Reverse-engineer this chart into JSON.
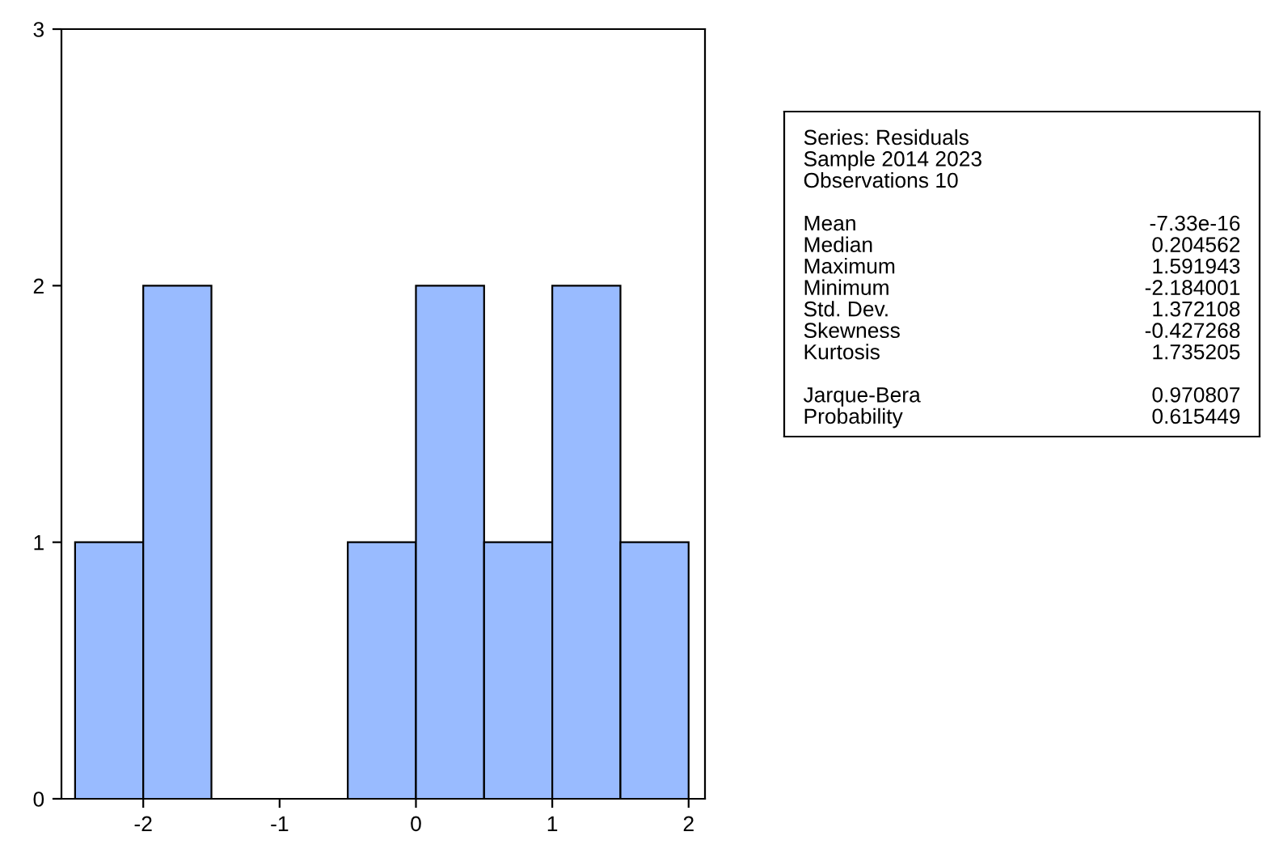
{
  "chart_data": [
    {
      "type": "histogram",
      "bins": [
        -2.5,
        -2,
        -1.5,
        -1,
        -0.5,
        0,
        0.5,
        1,
        1.5,
        2
      ],
      "values": [
        1,
        2,
        0,
        0,
        1,
        2,
        1,
        2,
        1
      ],
      "color": "#99bbff",
      "xlim": [
        -2.6,
        2.12
      ],
      "xticks": [
        -2,
        -1,
        0,
        1,
        2
      ],
      "ylim": [
        0,
        3
      ],
      "yticks": [
        0,
        1,
        2,
        3
      ],
      "grid": false
    },
    {
      "type": "other",
      "annotations": [
        "Series: Residuals",
        "Sample 2014 2023",
        "Observations 10"
      ],
      "categories": [
        "Mean",
        "Median",
        "Maximum",
        "Minimum",
        "Std. Dev.",
        "Skewness",
        "Kurtosis",
        null,
        "Jarque-Bera",
        "Probability"
      ],
      "value_labels": [
        "-7.33e-16",
        "0.204562",
        "1.591943",
        "-2.184001",
        "1.372108",
        "-0.427268",
        "1.735205",
        null,
        "0.970807",
        "0.615449"
      ]
    }
  ]
}
